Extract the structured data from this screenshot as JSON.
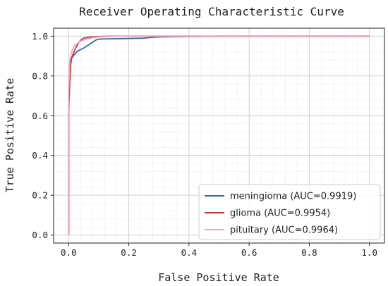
{
  "chart_data": {
    "type": "line",
    "title": "Receiver Operating Characteristic Curve",
    "xlabel": "False Positive Rate",
    "ylabel": "True Positive Rate",
    "xlim": [
      -0.05,
      1.05
    ],
    "ylim": [
      -0.04,
      1.04
    ],
    "xticks": [
      "0.0",
      "0.2",
      "0.4",
      "0.6",
      "0.8",
      "1.0"
    ],
    "yticks": [
      "0.0",
      "0.2",
      "0.4",
      "0.6",
      "0.8",
      "1.0"
    ],
    "grid": true,
    "minor_grid": true,
    "legend_position": "lower-right",
    "series": [
      {
        "name": "meningioma (AUC=0.9919)",
        "color": "#2c6e9e",
        "x": [
          0.0,
          0.0,
          0.002,
          0.004,
          0.006,
          0.01,
          0.015,
          0.02,
          0.03,
          0.05,
          0.07,
          0.09,
          0.1,
          0.15,
          0.2,
          0.25,
          0.28,
          0.3,
          0.4,
          0.5,
          1.0
        ],
        "y": [
          0.0,
          0.65,
          0.75,
          0.82,
          0.86,
          0.89,
          0.9,
          0.91,
          0.925,
          0.94,
          0.96,
          0.98,
          0.985,
          0.987,
          0.988,
          0.99,
          0.994,
          0.996,
          0.998,
          1.0,
          1.0
        ]
      },
      {
        "name": "glioma (AUC=0.9954)",
        "color": "#c8323e",
        "x": [
          0.0,
          0.0,
          0.002,
          0.004,
          0.006,
          0.01,
          0.015,
          0.02,
          0.03,
          0.04,
          0.05,
          0.07,
          0.1,
          0.15,
          0.2,
          0.3,
          1.0
        ],
        "y": [
          0.0,
          0.62,
          0.7,
          0.78,
          0.85,
          0.89,
          0.91,
          0.93,
          0.96,
          0.98,
          0.99,
          0.995,
          0.998,
          1.0,
          1.0,
          1.0,
          1.0
        ]
      },
      {
        "name": "pituitary (AUC=0.9964)",
        "color": "#f2a5c2",
        "x": [
          0.0,
          0.0,
          0.002,
          0.004,
          0.008,
          0.012,
          0.02,
          0.03,
          0.04,
          0.06,
          0.08,
          0.1,
          0.15,
          0.2,
          1.0
        ],
        "y": [
          0.0,
          0.72,
          0.83,
          0.88,
          0.91,
          0.93,
          0.955,
          0.965,
          0.975,
          0.985,
          0.992,
          0.996,
          0.999,
          1.0,
          1.0
        ]
      }
    ]
  }
}
